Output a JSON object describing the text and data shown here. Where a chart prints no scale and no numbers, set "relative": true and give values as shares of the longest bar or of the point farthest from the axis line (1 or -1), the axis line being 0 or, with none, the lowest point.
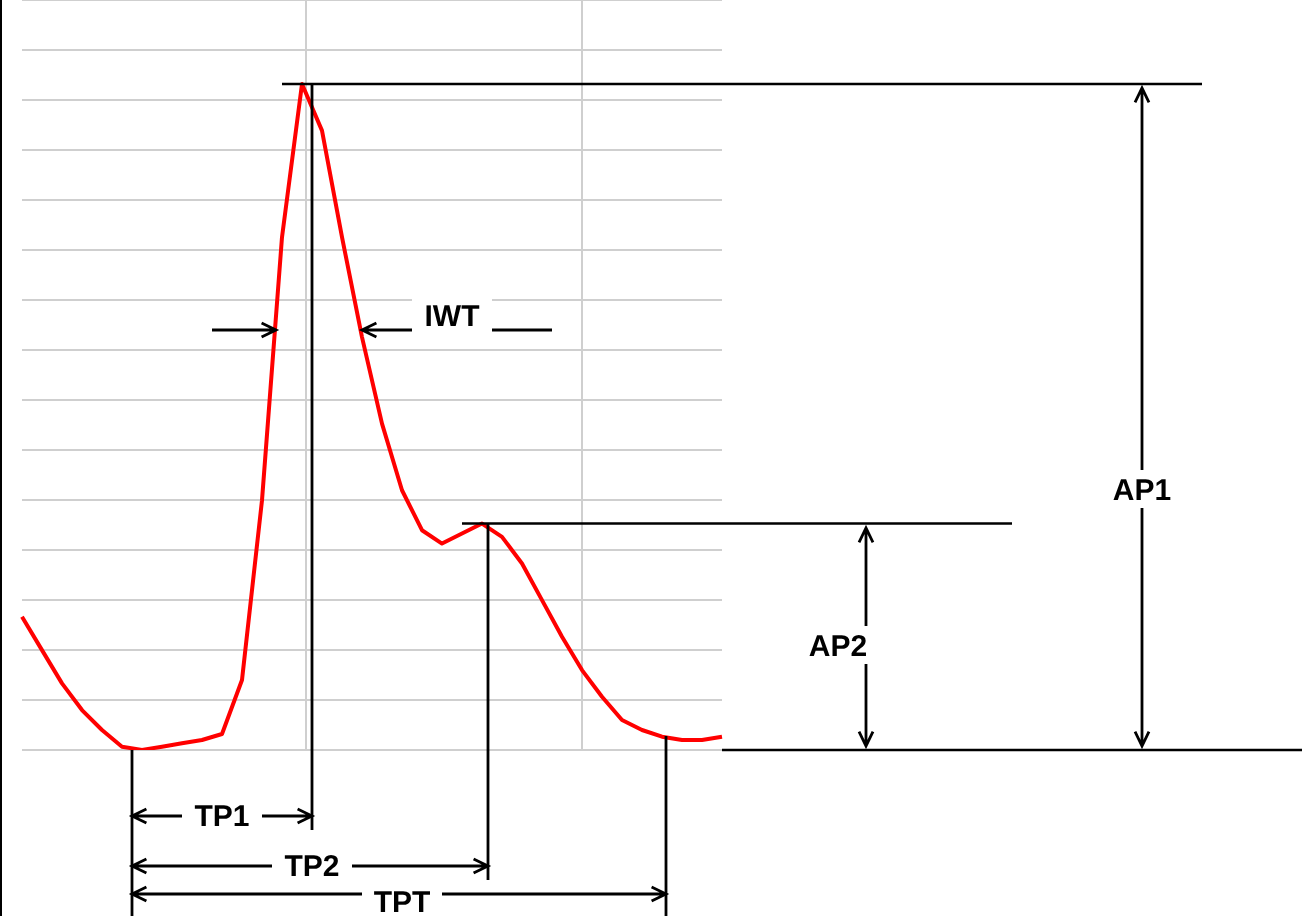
{
  "chart_data": {
    "type": "line",
    "relative": true,
    "grid": true,
    "marker": "none",
    "line_style": "solid",
    "categories": [
      null,
      null,
      null,
      null,
      null,
      null,
      null,
      null,
      null,
      null,
      null,
      null,
      null,
      null,
      null,
      null,
      null,
      null,
      null,
      null,
      null,
      null,
      null,
      null,
      null,
      null,
      null,
      null,
      null,
      null,
      null,
      null,
      null,
      null,
      null,
      null
    ],
    "series": [
      {
        "color": "#ff0000",
        "values": [
          0.2,
          0.15,
          0.1,
          0.06,
          0.03,
          0.005,
          0,
          0.005,
          0.01,
          0.015,
          0.024,
          0.105,
          0.375,
          0.77,
          1,
          0.93,
          0.77,
          0.62,
          0.49,
          0.39,
          0.33,
          0.31,
          0.325,
          0.34,
          0.32,
          0.28,
          0.225,
          0.17,
          0.12,
          0.08,
          0.045,
          0.03,
          0.02,
          0.015,
          0.015,
          0.02
        ]
      }
    ],
    "ref_lines": [
      {
        "axis": "y",
        "value": 1,
        "color": "#000000"
      },
      {
        "axis": "y",
        "value": 0.34,
        "color": "#000000"
      }
    ],
    "annotations": [
      "IWT",
      "AP1",
      "AP2",
      "TP1",
      "TP2",
      "TPT"
    ]
  }
}
